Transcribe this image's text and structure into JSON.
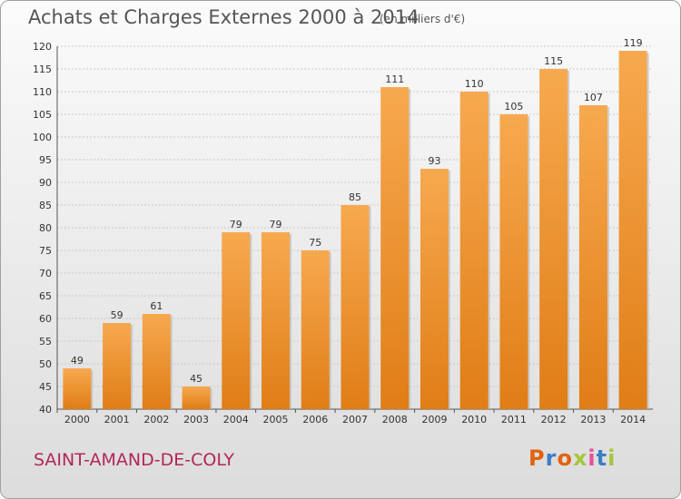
{
  "title": "Achats et Charges Externes 2000 à 2014",
  "subtitle": "(en milliers d'€)",
  "city": "SAINT-AMAND-DE-COLY",
  "logo": {
    "text": "Proxiti",
    "colors": [
      "#e2620f",
      "#3b7fc4",
      "#e2620f",
      "#a5c639",
      "#e94e9a",
      "#3b7fc4",
      "#a5c639"
    ]
  },
  "colors": {
    "bar_light": "#f7a94f",
    "bar_dark": "#e07d16",
    "city": "#b2265a"
  },
  "chart_data": {
    "type": "bar",
    "title": "Achats et Charges Externes 2000 à 2014",
    "subtitle": "(en milliers d'€)",
    "categories": [
      "2000",
      "2001",
      "2002",
      "2003",
      "2004",
      "2005",
      "2006",
      "2007",
      "2008",
      "2009",
      "2010",
      "2011",
      "2012",
      "2013",
      "2014"
    ],
    "values": [
      49,
      59,
      61,
      45,
      79,
      79,
      75,
      85,
      111,
      93,
      110,
      105,
      115,
      107,
      119
    ],
    "ylim": [
      40,
      120
    ],
    "yticks": [
      40,
      45,
      50,
      55,
      60,
      65,
      70,
      75,
      80,
      85,
      90,
      95,
      100,
      105,
      110,
      115,
      120
    ],
    "grid": true,
    "xlabel": "",
    "ylabel": ""
  }
}
